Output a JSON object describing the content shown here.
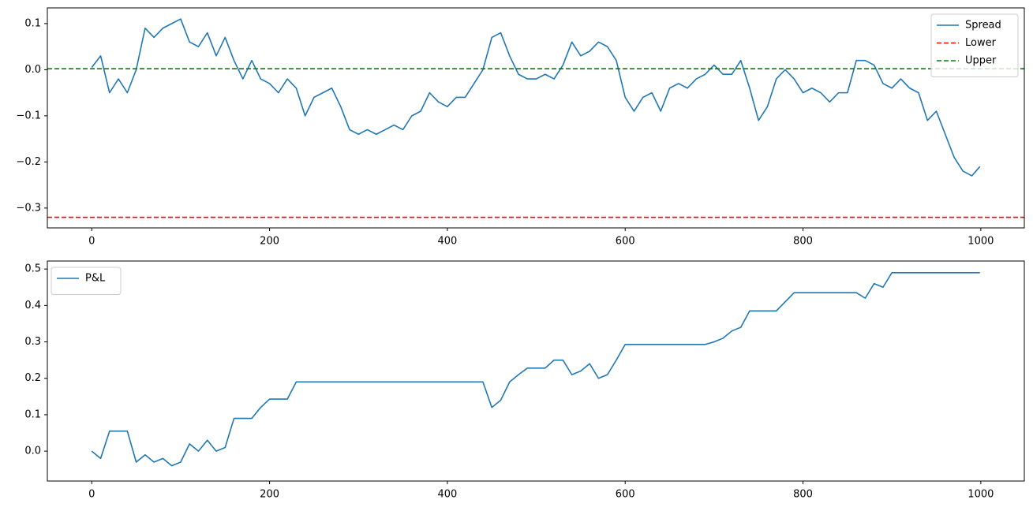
{
  "chart_data": [
    {
      "type": "line",
      "x": [
        0,
        10,
        20,
        30,
        40,
        50,
        60,
        70,
        80,
        90,
        100,
        110,
        120,
        130,
        140,
        150,
        160,
        170,
        180,
        190,
        200,
        210,
        220,
        230,
        240,
        250,
        260,
        270,
        280,
        290,
        300,
        310,
        320,
        330,
        340,
        350,
        360,
        370,
        380,
        390,
        400,
        410,
        420,
        430,
        440,
        450,
        460,
        470,
        480,
        490,
        500,
        510,
        520,
        530,
        540,
        550,
        560,
        570,
        580,
        590,
        600,
        610,
        620,
        630,
        640,
        650,
        660,
        670,
        680,
        690,
        700,
        710,
        720,
        730,
        740,
        750,
        760,
        770,
        780,
        790,
        800,
        810,
        820,
        830,
        840,
        850,
        860,
        870,
        880,
        890,
        900,
        910,
        920,
        930,
        940,
        950,
        960,
        970,
        980,
        990,
        999
      ],
      "series": [
        {
          "name": "Spread",
          "color": "#1f77b4",
          "values": [
            0.005,
            0.03,
            -0.05,
            -0.02,
            -0.05,
            0.0,
            0.09,
            0.07,
            0.09,
            0.1,
            0.11,
            0.06,
            0.05,
            0.08,
            0.03,
            0.07,
            0.02,
            -0.02,
            0.02,
            -0.02,
            -0.03,
            -0.05,
            -0.02,
            -0.04,
            -0.1,
            -0.06,
            -0.05,
            -0.04,
            -0.08,
            -0.13,
            -0.14,
            -0.13,
            -0.14,
            -0.13,
            -0.12,
            -0.13,
            -0.1,
            -0.09,
            -0.05,
            -0.07,
            -0.08,
            -0.06,
            -0.06,
            -0.03,
            0.0,
            0.07,
            0.08,
            0.03,
            -0.01,
            -0.02,
            -0.02,
            -0.01,
            -0.02,
            0.01,
            0.06,
            0.03,
            0.04,
            0.06,
            0.05,
            0.02,
            -0.06,
            -0.09,
            -0.06,
            -0.05,
            -0.09,
            -0.04,
            -0.03,
            -0.04,
            -0.02,
            -0.01,
            0.01,
            -0.01,
            -0.01,
            0.02,
            -0.04,
            -0.11,
            -0.08,
            -0.02,
            0.0,
            -0.02,
            -0.05,
            -0.04,
            -0.05,
            -0.07,
            -0.05,
            -0.05,
            0.02,
            0.02,
            0.01,
            -0.03,
            -0.04,
            -0.02,
            -0.04,
            -0.05,
            -0.11,
            -0.09,
            -0.14,
            -0.19,
            -0.22,
            -0.23,
            -0.21
          ]
        }
      ],
      "hlines": [
        {
          "name": "Lower",
          "color": "#ff0000",
          "value": -0.32,
          "dashed": true
        },
        {
          "name": "Upper",
          "color": "#008000",
          "value": 0.002,
          "dashed": true
        }
      ],
      "xlim": [
        -49.95,
        1048.95
      ],
      "xticks": [
        0,
        200,
        400,
        600,
        800,
        1000
      ],
      "ylim": [
        -0.343,
        0.134
      ],
      "yticks": [
        {
          "value": -0.3,
          "label": "−0.3"
        },
        {
          "value": -0.2,
          "label": "−0.2"
        },
        {
          "value": -0.1,
          "label": "−0.1"
        },
        {
          "value": 0.0,
          "label": "0.0"
        },
        0.1
      ],
      "legend": "upper right"
    },
    {
      "type": "line",
      "x": [
        0,
        10,
        20,
        30,
        40,
        50,
        60,
        70,
        80,
        90,
        100,
        110,
        120,
        130,
        140,
        150,
        160,
        170,
        180,
        190,
        200,
        210,
        220,
        230,
        240,
        250,
        260,
        270,
        280,
        290,
        300,
        310,
        320,
        330,
        340,
        350,
        360,
        370,
        380,
        390,
        400,
        410,
        420,
        430,
        440,
        450,
        460,
        470,
        480,
        490,
        500,
        510,
        520,
        530,
        540,
        550,
        560,
        570,
        580,
        590,
        600,
        610,
        620,
        630,
        640,
        650,
        660,
        670,
        680,
        690,
        700,
        710,
        720,
        730,
        740,
        750,
        760,
        770,
        780,
        790,
        800,
        810,
        820,
        830,
        840,
        850,
        860,
        870,
        880,
        890,
        900,
        910,
        920,
        930,
        940,
        950,
        960,
        970,
        980,
        990,
        999
      ],
      "series": [
        {
          "name": "P&L",
          "color": "#1f77b4",
          "values": [
            0.0,
            -0.02,
            0.055,
            0.055,
            0.055,
            -0.03,
            -0.01,
            -0.03,
            -0.02,
            -0.04,
            -0.03,
            0.02,
            0.0,
            0.03,
            0.0,
            0.01,
            0.09,
            0.09,
            0.09,
            0.12,
            0.143,
            0.143,
            0.143,
            0.19,
            0.19,
            0.19,
            0.19,
            0.19,
            0.19,
            0.19,
            0.19,
            0.19,
            0.19,
            0.19,
            0.19,
            0.19,
            0.19,
            0.19,
            0.19,
            0.19,
            0.19,
            0.19,
            0.19,
            0.19,
            0.19,
            0.12,
            0.14,
            0.19,
            0.21,
            0.228,
            0.228,
            0.228,
            0.25,
            0.25,
            0.21,
            0.22,
            0.24,
            0.2,
            0.21,
            0.25,
            0.293,
            0.293,
            0.293,
            0.293,
            0.293,
            0.293,
            0.293,
            0.293,
            0.293,
            0.293,
            0.3,
            0.31,
            0.33,
            0.34,
            0.385,
            0.385,
            0.385,
            0.385,
            0.41,
            0.435,
            0.435,
            0.435,
            0.435,
            0.435,
            0.435,
            0.435,
            0.435,
            0.42,
            0.46,
            0.45,
            0.49,
            0.49,
            0.49,
            0.49,
            0.49,
            0.49,
            0.49,
            0.49,
            0.49,
            0.49,
            0.49
          ]
        }
      ],
      "hlines": [],
      "xlim": [
        -49.95,
        1048.95
      ],
      "xticks": [
        0,
        200,
        400,
        600,
        800,
        1000
      ],
      "ylim": [
        -0.082,
        0.522
      ],
      "yticks": [
        {
          "value": 0.0,
          "label": "0.0"
        },
        0.1,
        0.2,
        0.3,
        0.4,
        0.5
      ],
      "legend": "upper left"
    }
  ]
}
